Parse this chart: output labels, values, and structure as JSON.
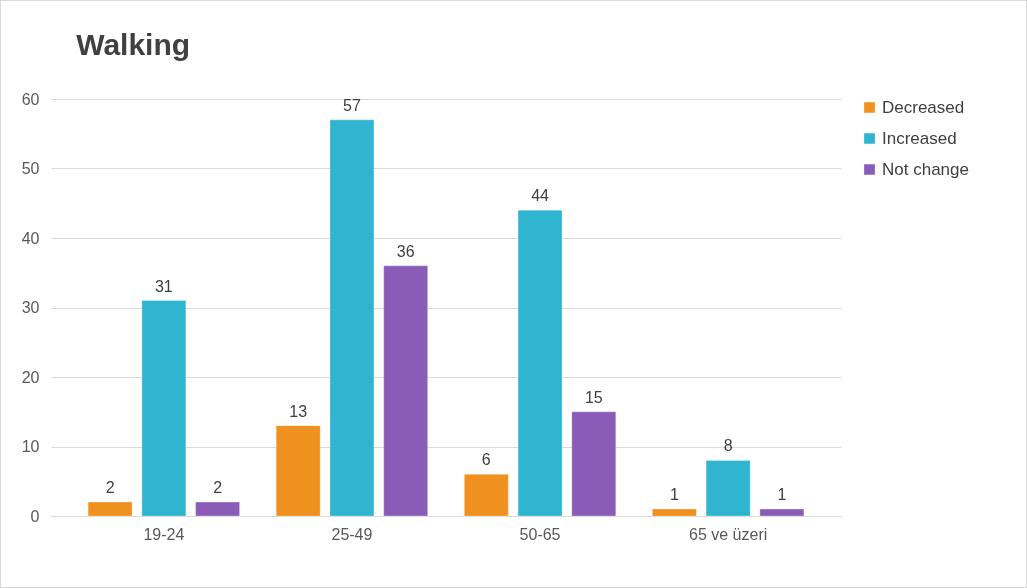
{
  "chart_data": {
    "type": "bar",
    "title": "Walking",
    "categories": [
      "19-24",
      "25-49",
      "50-65",
      "65 ve üzeri"
    ],
    "series": [
      {
        "name": "Decreased",
        "color": "#f0901e",
        "values": [
          2,
          13,
          6,
          1
        ]
      },
      {
        "name": "Increased",
        "color": "#2fb5cf",
        "values": [
          31,
          57,
          44,
          8
        ]
      },
      {
        "name": "Not change",
        "color": "#8a5cb8",
        "values": [
          2,
          36,
          15,
          1
        ]
      }
    ],
    "ylim": [
      0,
      60
    ],
    "yticks": [
      0,
      10,
      20,
      30,
      40,
      50,
      60
    ],
    "grid": "y",
    "legend": "right",
    "data_labels": true
  }
}
